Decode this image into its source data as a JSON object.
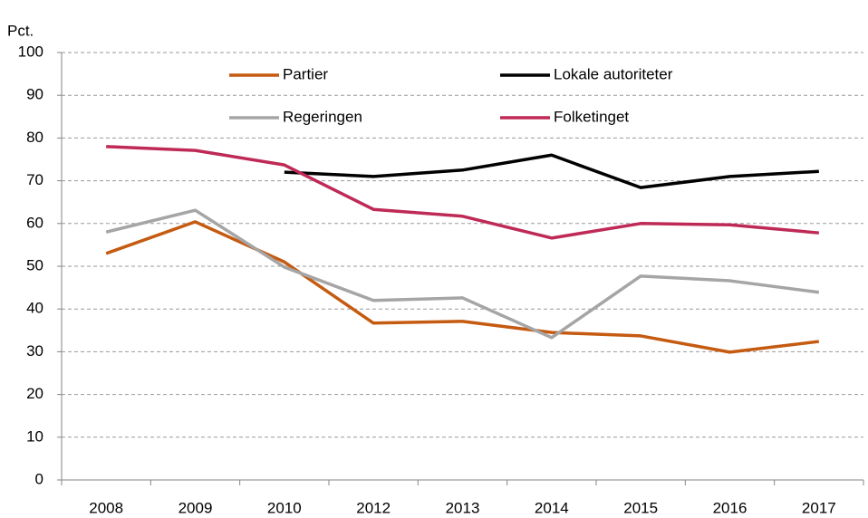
{
  "chart_data": {
    "type": "line",
    "y_label": "Pct.",
    "categories": [
      "2008",
      "2009",
      "2010",
      "2012",
      "2013",
      "2014",
      "2015",
      "2016",
      "2017"
    ],
    "series": [
      {
        "name": "Partier",
        "color": "#c55a11",
        "values": [
          53,
          60.4,
          51,
          36.7,
          37.1,
          34.5,
          33.7,
          29.9,
          32.4
        ]
      },
      {
        "name": "Lokale autoriteter",
        "color": "#000000",
        "values": [
          null,
          null,
          72,
          71,
          72.5,
          76,
          68.4,
          71,
          72.2
        ]
      },
      {
        "name": "Regeringen",
        "color": "#a5a5a5",
        "values": [
          58,
          63.1,
          49.8,
          42,
          42.6,
          33.3,
          47.7,
          46.6,
          43.9
        ]
      },
      {
        "name": "Folketinget",
        "color": "#be2a55",
        "values": [
          78,
          77.1,
          73.7,
          63.3,
          61.7,
          56.6,
          60,
          59.7,
          57.8
        ]
      }
    ],
    "ylim": [
      0,
      100
    ],
    "yticks": [
      0,
      10,
      20,
      30,
      40,
      50,
      60,
      70,
      80,
      90,
      100
    ],
    "grid": true,
    "legend": "top"
  }
}
